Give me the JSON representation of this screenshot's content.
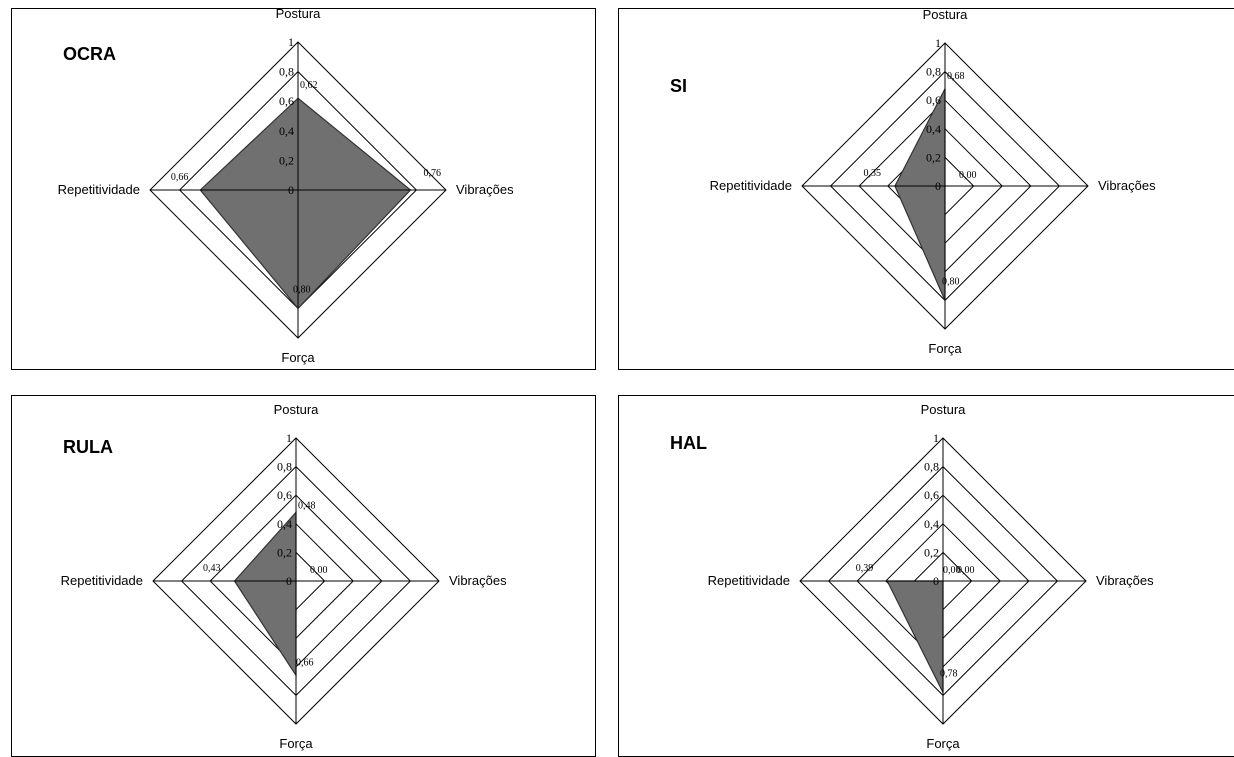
{
  "chart_data": [
    {
      "type": "radar",
      "title": "OCRA",
      "axes": [
        "Postura",
        "Vibrações",
        "Força",
        "Repetitividade"
      ],
      "values": [
        0.62,
        0.76,
        0.8,
        0.66
      ],
      "value_labels": [
        "0,62",
        "0,76",
        "0,80",
        "0,66"
      ],
      "ticks": [
        "0",
        "0,2",
        "0,4",
        "0,6",
        "0,8",
        "1"
      ],
      "ylim": [
        0,
        1
      ],
      "fill_color": "#707070"
    },
    {
      "type": "radar",
      "title": "SI",
      "axes": [
        "Postura",
        "Vibrações",
        "Força",
        "Repetitividade"
      ],
      "values": [
        0.68,
        0.0,
        0.8,
        0.35
      ],
      "value_labels": [
        "0,68",
        "0,00",
        "0,80",
        "0,35"
      ],
      "ticks": [
        "0",
        "0,2",
        "0,4",
        "0,6",
        "0,8",
        "1"
      ],
      "ylim": [
        0,
        1
      ],
      "fill_color": "#707070"
    },
    {
      "type": "radar",
      "title": "RULA",
      "axes": [
        "Postura",
        "Vibrações",
        "Força",
        "Repetitividade"
      ],
      "values": [
        0.48,
        0.0,
        0.66,
        0.43
      ],
      "value_labels": [
        "0,48",
        "0,00",
        "0,66",
        "0,43"
      ],
      "ticks": [
        "0",
        "0,2",
        "0,4",
        "0,6",
        "0,8",
        "1"
      ],
      "ylim": [
        0,
        1
      ],
      "fill_color": "#707070"
    },
    {
      "type": "radar",
      "title": "HAL",
      "axes": [
        "Postura",
        "Vibrações",
        "Força",
        "Repetitividade"
      ],
      "values": [
        0.0,
        0.0,
        0.78,
        0.39
      ],
      "value_labels": [
        "0,00",
        "0,00",
        "0,78",
        "0,39"
      ],
      "ticks": [
        "0",
        "0,2",
        "0,4",
        "0,6",
        "0,8",
        "1"
      ],
      "ylim": [
        0,
        1
      ],
      "fill_color": "#707070"
    }
  ]
}
